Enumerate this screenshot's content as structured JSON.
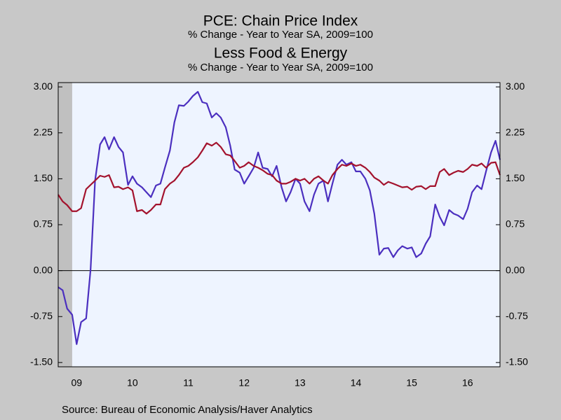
{
  "chart_data": {
    "type": "line",
    "title": "PCE: Chain Price Index",
    "subtitle": "% Change - Year to Year   SA, 2009=100",
    "title2": "Less Food & Energy",
    "subtitle2": "% Change - Year to Year   SA, 2009=100",
    "source": "Source:  Bureau of Economic Analysis/Haver Analytics",
    "x": [
      2009.17,
      2009.25,
      2009.33,
      2009.42,
      2009.5,
      2009.58,
      2009.67,
      2009.75,
      2009.83,
      2009.92,
      2010.0,
      2010.08,
      2010.17,
      2010.25,
      2010.33,
      2010.42,
      2010.5,
      2010.58,
      2010.67,
      2010.75,
      2010.83,
      2010.92,
      2011.0,
      2011.08,
      2011.17,
      2011.25,
      2011.33,
      2011.42,
      2011.5,
      2011.58,
      2011.67,
      2011.75,
      2011.83,
      2011.92,
      2012.0,
      2012.08,
      2012.17,
      2012.25,
      2012.33,
      2012.42,
      2012.5,
      2012.58,
      2012.67,
      2012.75,
      2012.83,
      2012.92,
      2013.0,
      2013.08,
      2013.17,
      2013.25,
      2013.33,
      2013.42,
      2013.5,
      2013.58,
      2013.67,
      2013.75,
      2013.83,
      2013.92,
      2014.0,
      2014.08,
      2014.17,
      2014.25,
      2014.33,
      2014.42,
      2014.5,
      2014.58,
      2014.67,
      2014.75,
      2014.83,
      2014.92,
      2015.0,
      2015.08,
      2015.17,
      2015.25,
      2015.33,
      2015.42,
      2015.5,
      2015.58,
      2015.67,
      2015.75,
      2015.83,
      2015.92,
      2016.0,
      2016.08,
      2016.17,
      2016.25,
      2016.33,
      2016.42,
      2016.5,
      2016.58,
      2016.67,
      2016.75,
      2016.83,
      2016.92,
      2017.0,
      2017.08
    ],
    "series": [
      {
        "name": "PCE: Chain Price Index",
        "color": "#4b2fbf",
        "values": [
          -0.27,
          -0.32,
          -0.62,
          -0.72,
          -1.2,
          -0.84,
          -0.78,
          0.02,
          1.47,
          2.06,
          2.18,
          1.98,
          2.18,
          2.02,
          1.93,
          1.4,
          1.54,
          1.42,
          1.36,
          1.28,
          1.2,
          1.39,
          1.42,
          1.68,
          1.96,
          2.42,
          2.7,
          2.69,
          2.76,
          2.85,
          2.92,
          2.75,
          2.73,
          2.5,
          2.57,
          2.5,
          2.34,
          2.04,
          1.65,
          1.6,
          1.42,
          1.54,
          1.68,
          1.93,
          1.68,
          1.66,
          1.54,
          1.71,
          1.36,
          1.13,
          1.28,
          1.5,
          1.42,
          1.13,
          0.97,
          1.24,
          1.42,
          1.47,
          1.13,
          1.42,
          1.73,
          1.81,
          1.73,
          1.77,
          1.62,
          1.62,
          1.5,
          1.31,
          0.93,
          0.26,
          0.36,
          0.37,
          0.22,
          0.33,
          0.4,
          0.36,
          0.38,
          0.22,
          0.28,
          0.44,
          0.56,
          1.08,
          0.88,
          0.74,
          0.99,
          0.93,
          0.9,
          0.84,
          1.01,
          1.28,
          1.39,
          1.33,
          1.62,
          1.93,
          2.12,
          1.81
        ]
      },
      {
        "name": "Less Food & Energy",
        "color": "#a3122d",
        "values": [
          1.24,
          1.13,
          1.07,
          0.97,
          0.97,
          1.02,
          1.33,
          1.4,
          1.47,
          1.55,
          1.53,
          1.56,
          1.36,
          1.37,
          1.33,
          1.36,
          1.31,
          0.97,
          0.99,
          0.93,
          0.99,
          1.08,
          1.08,
          1.33,
          1.42,
          1.47,
          1.56,
          1.68,
          1.71,
          1.77,
          1.85,
          1.96,
          2.08,
          2.04,
          2.09,
          2.02,
          1.9,
          1.88,
          1.79,
          1.68,
          1.71,
          1.77,
          1.71,
          1.68,
          1.64,
          1.58,
          1.56,
          1.47,
          1.42,
          1.42,
          1.45,
          1.5,
          1.47,
          1.5,
          1.42,
          1.5,
          1.54,
          1.47,
          1.42,
          1.56,
          1.66,
          1.73,
          1.71,
          1.75,
          1.71,
          1.73,
          1.68,
          1.61,
          1.52,
          1.47,
          1.4,
          1.45,
          1.42,
          1.39,
          1.36,
          1.37,
          1.32,
          1.37,
          1.38,
          1.33,
          1.38,
          1.38,
          1.61,
          1.66,
          1.56,
          1.6,
          1.63,
          1.61,
          1.66,
          1.73,
          1.71,
          1.75,
          1.68,
          1.76,
          1.77,
          1.56
        ]
      }
    ],
    "recession": [
      [
        2009.17,
        2009.42
      ]
    ],
    "recession_color": "#c0c0c0",
    "xlim": [
      2009.17,
      2017.08
    ],
    "xticks": [
      {
        "value": 2009.5,
        "label": "09"
      },
      {
        "value": 2010.5,
        "label": "10"
      },
      {
        "value": 2011.5,
        "label": "11"
      },
      {
        "value": 2012.5,
        "label": "12"
      },
      {
        "value": 2013.5,
        "label": "13"
      },
      {
        "value": 2014.5,
        "label": "14"
      },
      {
        "value": 2015.5,
        "label": "15"
      },
      {
        "value": 2016.5,
        "label": "16"
      }
    ],
    "ylim": [
      -1.57,
      3.07
    ],
    "yticks": [
      {
        "value": 3,
        "label": "3.00"
      },
      {
        "value": 2.25,
        "label": "2.25"
      },
      {
        "value": 1.5,
        "label": "1.50"
      },
      {
        "value": 0.75,
        "label": "0.75"
      },
      {
        "value": 0,
        "label": "0.00"
      },
      {
        "value": -0.75,
        "label": "-0.75"
      },
      {
        "value": -1.5,
        "label": "-1.50"
      }
    ],
    "y2lim": [
      -1.57,
      3.07
    ],
    "y2ticks": [
      {
        "value": 3,
        "label": "3.00"
      },
      {
        "value": 2.25,
        "label": "2.25"
      },
      {
        "value": 1.5,
        "label": "1.50"
      },
      {
        "value": 0.75,
        "label": "0.75"
      },
      {
        "value": 0,
        "label": "0.00"
      },
      {
        "value": -0.75,
        "label": "-0.75"
      },
      {
        "value": -1.5,
        "label": "-1.50"
      }
    ],
    "zero_line": true
  }
}
